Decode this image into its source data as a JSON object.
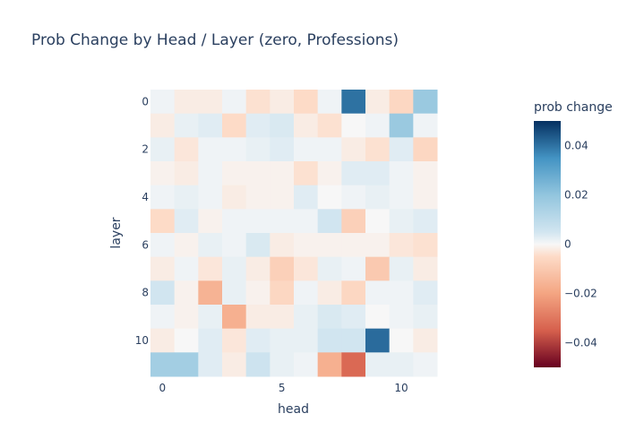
{
  "chart_data": {
    "type": "heatmap",
    "title": "Prob Change by Head / Layer (zero, Professions)",
    "xlabel": "head",
    "ylabel": "layer",
    "x_ticks": [
      0,
      5,
      10
    ],
    "y_ticks": [
      0,
      2,
      4,
      6,
      8,
      10
    ],
    "colorbar": {
      "title": "prob change",
      "range": [
        -0.05,
        0.05
      ],
      "ticks": [
        0.04,
        0.02,
        0,
        -0.02,
        -0.04
      ],
      "tick_labels": [
        "0.04",
        "0.02",
        "0",
        "−0.02",
        "−0.04"
      ],
      "colorscale": "RdBu"
    },
    "values": [
      [
        0.001,
        -0.002,
        -0.002,
        0.001,
        -0.004,
        -0.002,
        -0.005,
        0.001,
        0.04,
        -0.002,
        -0.006,
        0.018
      ],
      [
        -0.002,
        0.002,
        0.003,
        -0.005,
        0.003,
        0.004,
        -0.002,
        -0.004,
        0.0,
        0.001,
        0.018,
        0.001
      ],
      [
        0.002,
        -0.003,
        0.001,
        0.001,
        0.002,
        0.003,
        0.001,
        0.001,
        -0.002,
        -0.004,
        0.003,
        -0.006
      ],
      [
        -0.001,
        -0.002,
        0.001,
        -0.001,
        -0.001,
        -0.001,
        -0.004,
        -0.001,
        0.003,
        0.003,
        0.001,
        -0.001
      ],
      [
        0.001,
        0.002,
        0.001,
        -0.002,
        -0.001,
        -0.001,
        0.003,
        0.0,
        0.001,
        0.002,
        0.001,
        -0.001
      ],
      [
        -0.005,
        0.003,
        -0.001,
        0.001,
        0.001,
        0.001,
        0.001,
        0.005,
        -0.008,
        0.0,
        0.002,
        0.003
      ],
      [
        0.001,
        -0.001,
        0.002,
        0.001,
        0.004,
        -0.002,
        -0.001,
        -0.001,
        -0.001,
        -0.001,
        -0.003,
        -0.004
      ],
      [
        -0.002,
        0.001,
        -0.003,
        0.002,
        -0.002,
        -0.008,
        -0.003,
        0.002,
        0.001,
        -0.01,
        0.002,
        -0.002
      ],
      [
        0.005,
        -0.001,
        -0.016,
        0.002,
        -0.001,
        -0.006,
        0.001,
        -0.002,
        -0.006,
        0.001,
        0.001,
        0.003
      ],
      [
        0.001,
        -0.001,
        0.002,
        -0.017,
        -0.002,
        -0.002,
        0.002,
        0.004,
        0.003,
        0.0,
        0.001,
        0.002
      ],
      [
        -0.002,
        0.0,
        0.003,
        -0.003,
        0.003,
        0.002,
        0.002,
        0.005,
        0.005,
        0.041,
        0.0,
        -0.002
      ],
      [
        0.016,
        0.016,
        0.003,
        -0.002,
        0.006,
        0.002,
        0.001,
        -0.017,
        -0.033,
        0.002,
        0.002,
        0.001
      ]
    ]
  }
}
